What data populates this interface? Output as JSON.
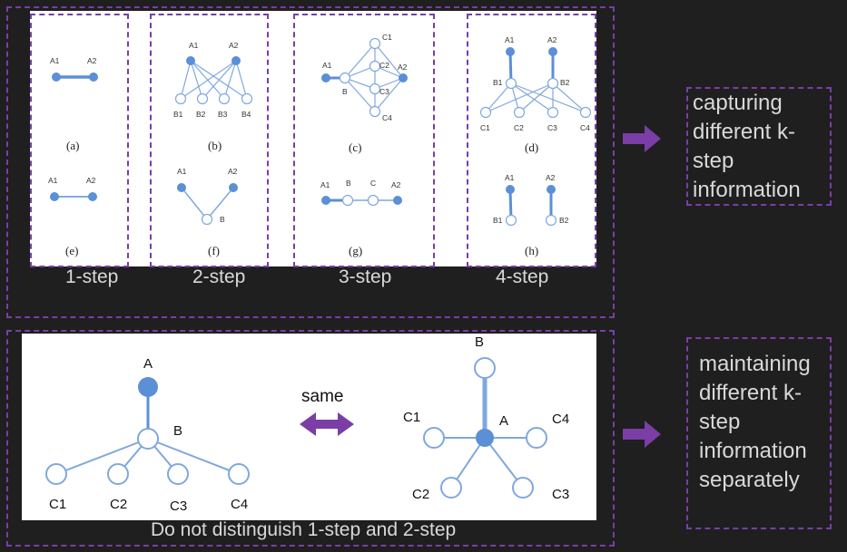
{
  "top_panel": {
    "subfig": {
      "a": {
        "caption": "(a)",
        "nodes": [
          "A1",
          "A2"
        ]
      },
      "b": {
        "caption": "(b)",
        "nodes": [
          "A1",
          "A2",
          "B1",
          "B2",
          "B3",
          "B4"
        ]
      },
      "c": {
        "caption": "(c)",
        "nodes": [
          "A1",
          "B",
          "C1",
          "C2",
          "C3",
          "C4",
          "A2"
        ]
      },
      "d": {
        "caption": "(d)",
        "nodes": [
          "A1",
          "A2",
          "B1",
          "B2",
          "C1",
          "C2",
          "C3",
          "C4"
        ]
      },
      "e": {
        "caption": "(e)",
        "nodes": [
          "A1",
          "A2"
        ]
      },
      "f": {
        "caption": "(f)",
        "nodes": [
          "A1",
          "A2",
          "B"
        ]
      },
      "g": {
        "caption": "(g)",
        "nodes": [
          "A1",
          "B",
          "C",
          "A2"
        ]
      },
      "h": {
        "caption": "(h)",
        "nodes": [
          "A1",
          "A2",
          "B1",
          "B2"
        ]
      }
    },
    "step_labels": [
      "1-step",
      "2-step",
      "3-step",
      "4-step"
    ],
    "result_text": "capturing different k-step information"
  },
  "bottom_panel": {
    "tree": {
      "root": "A",
      "middle": "B",
      "leaves": [
        "C1",
        "C2",
        "C3",
        "C4"
      ]
    },
    "star": {
      "top": "B",
      "center": "A",
      "leaves": [
        "C1",
        "C4",
        "C2",
        "C3"
      ]
    },
    "same_label": "same",
    "footer": "Do not distinguish 1-step and 2-step",
    "result_text": "maintaining different k-step information separately"
  },
  "colors": {
    "accent": "#7a3ea6",
    "node": "#5b8fd6",
    "edge": "#7fa8de",
    "bg": "#1f1f1f"
  }
}
